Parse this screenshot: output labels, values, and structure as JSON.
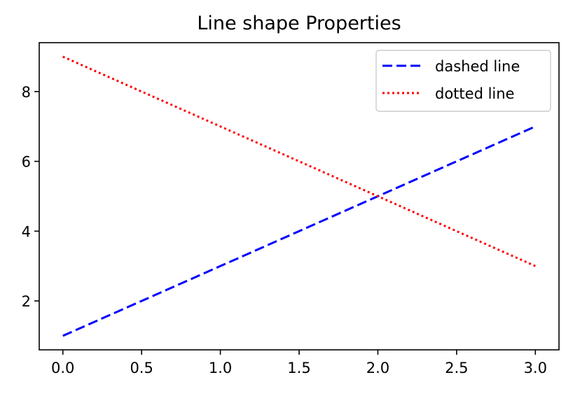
{
  "chart_data": {
    "type": "line",
    "title": "Line shape Properties",
    "xlabel": "",
    "ylabel": "",
    "x": [
      0,
      1,
      2,
      3
    ],
    "xlim": [
      -0.15,
      3.15
    ],
    "ylim": [
      0.6,
      9.4
    ],
    "xticks": [
      0,
      0.5,
      1,
      1.5,
      2,
      2.5,
      3
    ],
    "xtick_labels": [
      "0.0",
      "0.5",
      "1.0",
      "1.5",
      "2.0",
      "2.5",
      "3.0"
    ],
    "yticks": [
      2,
      4,
      6,
      8
    ],
    "ytick_labels": [
      "2",
      "4",
      "6",
      "8"
    ],
    "grid": false,
    "legend_position": "top-right",
    "series": [
      {
        "name": "dashed line",
        "values": [
          1,
          3,
          5,
          7
        ],
        "color": "#0000ff",
        "style": "dashed"
      },
      {
        "name": "dotted line",
        "values": [
          9,
          7,
          5,
          3
        ],
        "color": "#ff0000",
        "style": "dotted"
      }
    ]
  }
}
